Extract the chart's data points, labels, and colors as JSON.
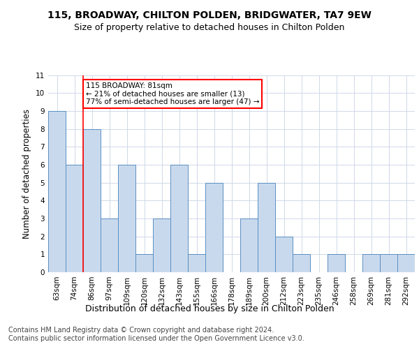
{
  "title": "115, BROADWAY, CHILTON POLDEN, BRIDGWATER, TA7 9EW",
  "subtitle": "Size of property relative to detached houses in Chilton Polden",
  "xlabel": "Distribution of detached houses by size in Chilton Polden",
  "ylabel": "Number of detached properties",
  "categories": [
    "63sqm",
    "74sqm",
    "86sqm",
    "97sqm",
    "109sqm",
    "120sqm",
    "132sqm",
    "143sqm",
    "155sqm",
    "166sqm",
    "178sqm",
    "189sqm",
    "200sqm",
    "212sqm",
    "223sqm",
    "235sqm",
    "246sqm",
    "258sqm",
    "269sqm",
    "281sqm",
    "292sqm"
  ],
  "values": [
    9,
    6,
    8,
    3,
    6,
    1,
    3,
    6,
    1,
    5,
    0,
    3,
    5,
    2,
    1,
    0,
    1,
    0,
    1,
    1,
    1
  ],
  "bar_color": "#c9d9ed",
  "bar_edge_color": "#5a8fc2",
  "grid_color": "#d0d8e8",
  "annotation_text": "115 BROADWAY: 81sqm\n← 21% of detached houses are smaller (13)\n77% of semi-detached houses are larger (47) →",
  "annotation_box_color": "white",
  "annotation_box_edge_color": "red",
  "vline_color": "red",
  "ylim": [
    0,
    11
  ],
  "yticks": [
    0,
    1,
    2,
    3,
    4,
    5,
    6,
    7,
    8,
    9,
    10,
    11
  ],
  "background_color": "white",
  "footer_line1": "Contains HM Land Registry data © Crown copyright and database right 2024.",
  "footer_line2": "Contains public sector information licensed under the Open Government Licence v3.0.",
  "title_fontsize": 10,
  "subtitle_fontsize": 9,
  "xlabel_fontsize": 9,
  "ylabel_fontsize": 8.5,
  "tick_fontsize": 7.5,
  "footer_fontsize": 7
}
